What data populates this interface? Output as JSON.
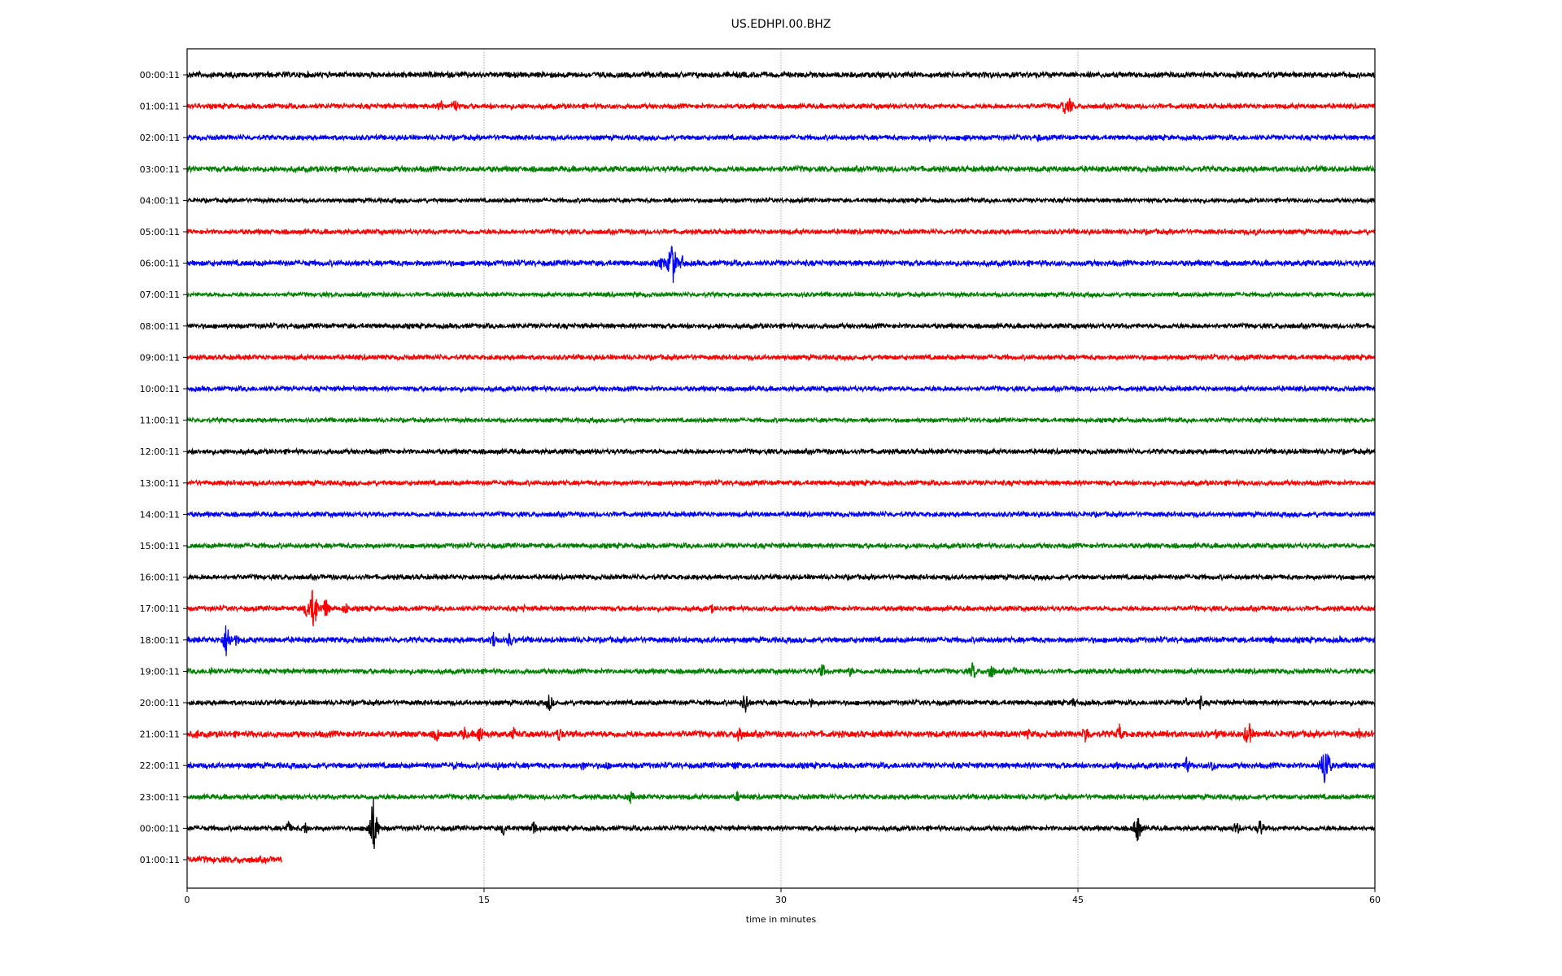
{
  "chart_data": {
    "type": "line",
    "title": "US.EDHPI.00.BHZ",
    "xlabel": "time in minutes",
    "ylabel": "",
    "xlim": [
      0,
      60
    ],
    "xticks": [
      "0",
      "15",
      "30",
      "45",
      "60"
    ],
    "xtick_values": [
      0,
      15,
      30,
      45,
      60
    ],
    "grid": "vertical dotted at x ticks",
    "colors": [
      "#000000",
      "#ff0000",
      "#0000ff",
      "#008000"
    ],
    "rows": [
      {
        "label": "00:00:11",
        "noise": 0.08,
        "events": []
      },
      {
        "label": "01:00:11",
        "noise": 0.07,
        "events": [
          [
            12.8,
            0.25
          ],
          [
            13.5,
            0.3
          ],
          [
            44.3,
            0.35
          ],
          [
            44.6,
            0.3
          ]
        ]
      },
      {
        "label": "02:00:11",
        "noise": 0.07,
        "events": [
          [
            37.5,
            0.15
          ],
          [
            39.3,
            0.2
          ],
          [
            43,
            0.18
          ]
        ]
      },
      {
        "label": "03:00:11",
        "noise": 0.08,
        "events": []
      },
      {
        "label": "04:00:11",
        "noise": 0.06,
        "events": []
      },
      {
        "label": "05:00:11",
        "noise": 0.07,
        "events": [
          [
            54,
            0.12
          ]
        ]
      },
      {
        "label": "06:00:11",
        "noise": 0.08,
        "events": [
          [
            24,
            0.3
          ],
          [
            24.5,
            0.95
          ],
          [
            25,
            0.3
          ]
        ]
      },
      {
        "label": "07:00:11",
        "noise": 0.06,
        "events": []
      },
      {
        "label": "08:00:11",
        "noise": 0.07,
        "events": []
      },
      {
        "label": "09:00:11",
        "noise": 0.07,
        "events": []
      },
      {
        "label": "10:00:11",
        "noise": 0.07,
        "events": []
      },
      {
        "label": "11:00:11",
        "noise": 0.06,
        "events": []
      },
      {
        "label": "12:00:11",
        "noise": 0.07,
        "events": []
      },
      {
        "label": "13:00:11",
        "noise": 0.07,
        "events": []
      },
      {
        "label": "14:00:11",
        "noise": 0.07,
        "events": []
      },
      {
        "label": "15:00:11",
        "noise": 0.07,
        "events": []
      },
      {
        "label": "16:00:11",
        "noise": 0.07,
        "events": []
      },
      {
        "label": "17:00:11",
        "noise": 0.07,
        "events": [
          [
            6.1,
            0.5
          ],
          [
            6.4,
            0.95
          ],
          [
            7,
            0.4
          ],
          [
            8,
            0.25
          ],
          [
            17,
            0.15
          ],
          [
            26.5,
            0.18
          ]
        ]
      },
      {
        "label": "18:00:11",
        "noise": 0.08,
        "events": [
          [
            2,
            0.7
          ],
          [
            2.5,
            0.25
          ],
          [
            15.5,
            0.35
          ],
          [
            16.3,
            0.3
          ],
          [
            54.8,
            0.2
          ],
          [
            58.2,
            0.15
          ]
        ]
      },
      {
        "label": "19:00:11",
        "noise": 0.07,
        "events": [
          [
            1.2,
            0.2
          ],
          [
            32.1,
            0.3
          ],
          [
            33.5,
            0.2
          ],
          [
            37,
            0.15
          ],
          [
            39.7,
            0.35
          ],
          [
            40.6,
            0.35
          ],
          [
            41.8,
            0.15
          ]
        ]
      },
      {
        "label": "20:00:11",
        "noise": 0.07,
        "events": [
          [
            18.3,
            0.35
          ],
          [
            28.2,
            0.45
          ],
          [
            31.5,
            0.2
          ],
          [
            44.8,
            0.2
          ],
          [
            50.5,
            0.2
          ],
          [
            51.2,
            0.25
          ]
        ]
      },
      {
        "label": "21:00:11",
        "noise": 0.09,
        "events": [
          [
            0.5,
            0.2
          ],
          [
            12.6,
            0.3
          ],
          [
            14,
            0.3
          ],
          [
            14.8,
            0.4
          ],
          [
            16.5,
            0.25
          ],
          [
            18.8,
            0.3
          ],
          [
            27.9,
            0.45
          ],
          [
            42.5,
            0.2
          ],
          [
            45.4,
            0.4
          ],
          [
            47.1,
            0.35
          ],
          [
            49.5,
            0.2
          ],
          [
            52,
            0.2
          ],
          [
            53.6,
            0.55
          ],
          [
            59.2,
            0.2
          ]
        ]
      },
      {
        "label": "22:00:11",
        "noise": 0.08,
        "events": [
          [
            13.5,
            0.2
          ],
          [
            15.7,
            0.2
          ],
          [
            20,
            0.2
          ],
          [
            21.2,
            0.2
          ],
          [
            27.7,
            0.2
          ],
          [
            47,
            0.2
          ],
          [
            50.5,
            0.3
          ],
          [
            51.8,
            0.25
          ],
          [
            57.5,
            0.95
          ]
        ]
      },
      {
        "label": "23:00:11",
        "noise": 0.07,
        "events": [
          [
            22.4,
            0.25
          ],
          [
            27.8,
            0.2
          ]
        ]
      },
      {
        "label": "00:00:11",
        "noise": 0.07,
        "events": [
          [
            5.1,
            0.3
          ],
          [
            6,
            0.25
          ],
          [
            9.4,
            1.1
          ],
          [
            16,
            0.3
          ],
          [
            17.5,
            0.3
          ],
          [
            48,
            0.55
          ],
          [
            53,
            0.3
          ],
          [
            54.2,
            0.35
          ]
        ]
      },
      {
        "label": "01:00:11",
        "noise": 0.09,
        "events": [],
        "end_minute": 4.8
      }
    ]
  }
}
